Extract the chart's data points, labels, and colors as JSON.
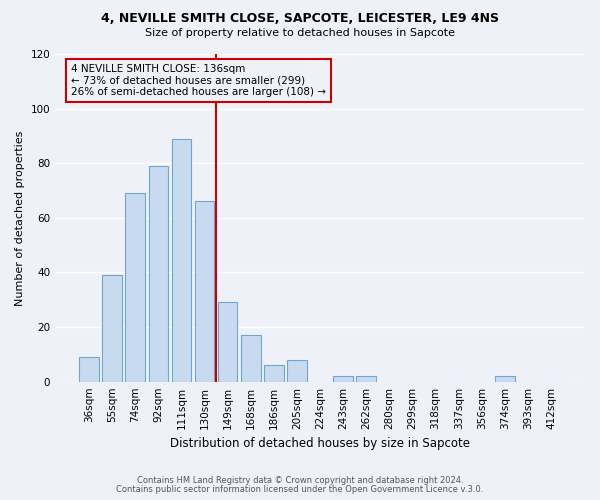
{
  "title1": "4, NEVILLE SMITH CLOSE, SAPCOTE, LEICESTER, LE9 4NS",
  "title2": "Size of property relative to detached houses in Sapcote",
  "xlabel": "Distribution of detached houses by size in Sapcote",
  "ylabel": "Number of detached properties",
  "bar_labels": [
    "36sqm",
    "55sqm",
    "74sqm",
    "92sqm",
    "111sqm",
    "130sqm",
    "149sqm",
    "168sqm",
    "186sqm",
    "205sqm",
    "224sqm",
    "243sqm",
    "262sqm",
    "280sqm",
    "299sqm",
    "318sqm",
    "337sqm",
    "356sqm",
    "374sqm",
    "393sqm",
    "412sqm"
  ],
  "bar_values": [
    9,
    39,
    69,
    79,
    89,
    66,
    29,
    17,
    6,
    8,
    0,
    2,
    2,
    0,
    0,
    0,
    0,
    0,
    2,
    0,
    0
  ],
  "bar_color": "#c8daf0",
  "bar_edge_color": "#6ea6d0",
  "vline_x_idx": 5,
  "vline_color": "#cc0000",
  "annotation_lines": [
    "4 NEVILLE SMITH CLOSE: 136sqm",
    "← 73% of detached houses are smaller (299)",
    "26% of semi-detached houses are larger (108) →"
  ],
  "ylim": [
    0,
    120
  ],
  "yticks": [
    0,
    20,
    40,
    60,
    80,
    100,
    120
  ],
  "footer1": "Contains HM Land Registry data © Crown copyright and database right 2024.",
  "footer2": "Contains public sector information licensed under the Open Government Licence v.3.0.",
  "bg_color": "#eef2f8",
  "grid_color": "#ffffff"
}
